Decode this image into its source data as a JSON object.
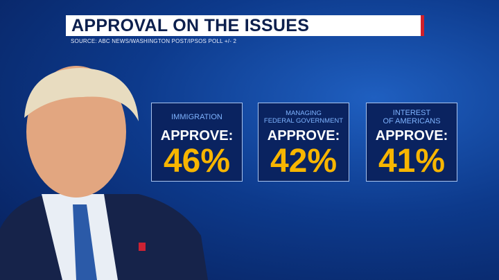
{
  "header": {
    "title": "APPROVAL ON THE ISSUES",
    "source": "SOURCE: ABC NEWS/WASHINGTON POST/IPSOS POLL +/- 2"
  },
  "cards": [
    {
      "label_lines": [
        "IMMIGRATION"
      ],
      "approve_label": "APPROVE:",
      "value": "46%"
    },
    {
      "label_lines": [
        "MANAGING",
        "FEDERAL GOVERNMENT"
      ],
      "approve_label": "APPROVE:",
      "value": "42%"
    },
    {
      "label_lines": [
        "INTEREST",
        "OF AMERICANS"
      ],
      "approve_label": "APPROVE:",
      "value": "41%"
    }
  ]
}
